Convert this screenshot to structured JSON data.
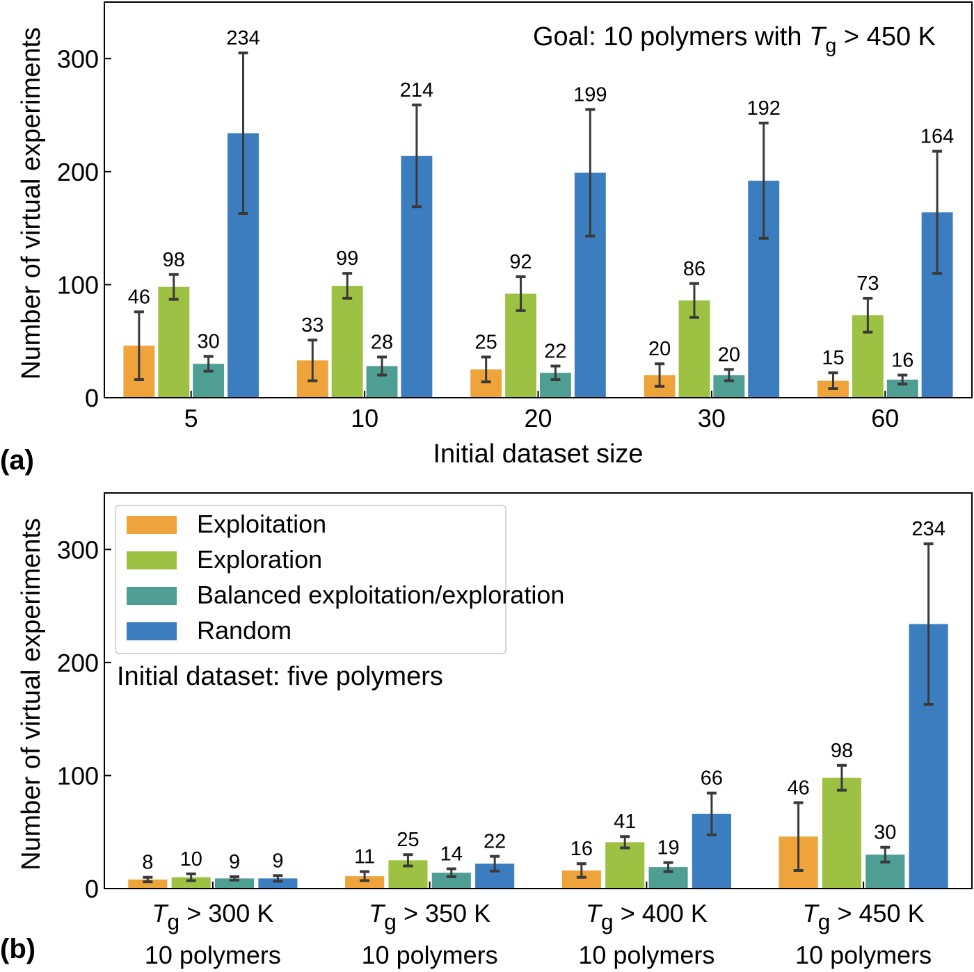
{
  "colors": {
    "Exploitation": "#eea43a",
    "Exploration": "#9dc142",
    "Balanced exploitation/exploration": "#4e9e94",
    "Random": "#3b7dbf",
    "error_bar": "#3a3a3a"
  },
  "chart_data": [
    {
      "type": "bar",
      "panel_label": "(a)",
      "annotation": {
        "prefix": "Goal: 10 polymers with ",
        "T": "T",
        "sub": "g",
        "suffix": " > 450 K"
      },
      "xlabel": "Initial dataset size",
      "ylabel": "Number of virtual experiments",
      "ylim": [
        0,
        350
      ],
      "yticks": [
        0,
        100,
        200,
        300
      ],
      "categories": [
        "5",
        "10",
        "20",
        "30",
        "60"
      ],
      "series": [
        {
          "name": "Exploitation",
          "values": [
            46,
            33,
            25,
            20,
            15
          ],
          "errors": [
            30,
            18,
            11,
            10,
            7
          ]
        },
        {
          "name": "Exploration",
          "values": [
            98,
            99,
            92,
            86,
            73
          ],
          "errors": [
            11,
            11,
            15,
            15,
            15
          ]
        },
        {
          "name": "Balanced exploitation/exploration",
          "values": [
            30,
            28,
            22,
            20,
            16
          ],
          "errors": [
            6.5,
            8,
            6,
            5,
            4
          ]
        },
        {
          "name": "Random",
          "values": [
            234,
            214,
            199,
            192,
            164
          ],
          "errors": [
            71,
            45,
            56,
            51,
            54
          ]
        }
      ],
      "grid": false
    },
    {
      "type": "bar",
      "panel_label": "(b)",
      "annotation": {
        "text": "Initial dataset: five polymers"
      },
      "xlabel": "",
      "ylabel": "Number of virtual experiments",
      "ylim": [
        0,
        350
      ],
      "yticks": [
        0,
        100,
        200,
        300
      ],
      "legend_position": "top-left",
      "legend": [
        "Exploitation",
        "Exploration",
        "Balanced exploitation/exploration",
        "Random"
      ],
      "categories": [
        {
          "T": "T",
          "sub": "g",
          "rest": " > 300 K",
          "line2": "10 polymers"
        },
        {
          "T": "T",
          "sub": "g",
          "rest": " > 350 K",
          "line2": "10 polymers"
        },
        {
          "T": "T",
          "sub": "g",
          "rest": " > 400 K",
          "line2": "10 polymers"
        },
        {
          "T": "T",
          "sub": "g",
          "rest": " > 450 K",
          "line2": "10 polymers"
        }
      ],
      "series": [
        {
          "name": "Exploitation",
          "values": [
            8,
            11,
            16,
            46
          ],
          "errors": [
            2,
            4,
            6,
            30
          ]
        },
        {
          "name": "Exploration",
          "values": [
            10,
            25,
            41,
            98
          ],
          "errors": [
            3,
            5,
            5,
            11
          ]
        },
        {
          "name": "Balanced exploitation/exploration",
          "values": [
            9,
            14,
            19,
            30
          ],
          "errors": [
            1.5,
            3.5,
            4,
            6.5
          ]
        },
        {
          "name": "Random",
          "values": [
            9,
            22,
            66,
            234
          ],
          "errors": [
            2.5,
            6.5,
            18.5,
            71
          ]
        }
      ],
      "grid": false
    }
  ]
}
